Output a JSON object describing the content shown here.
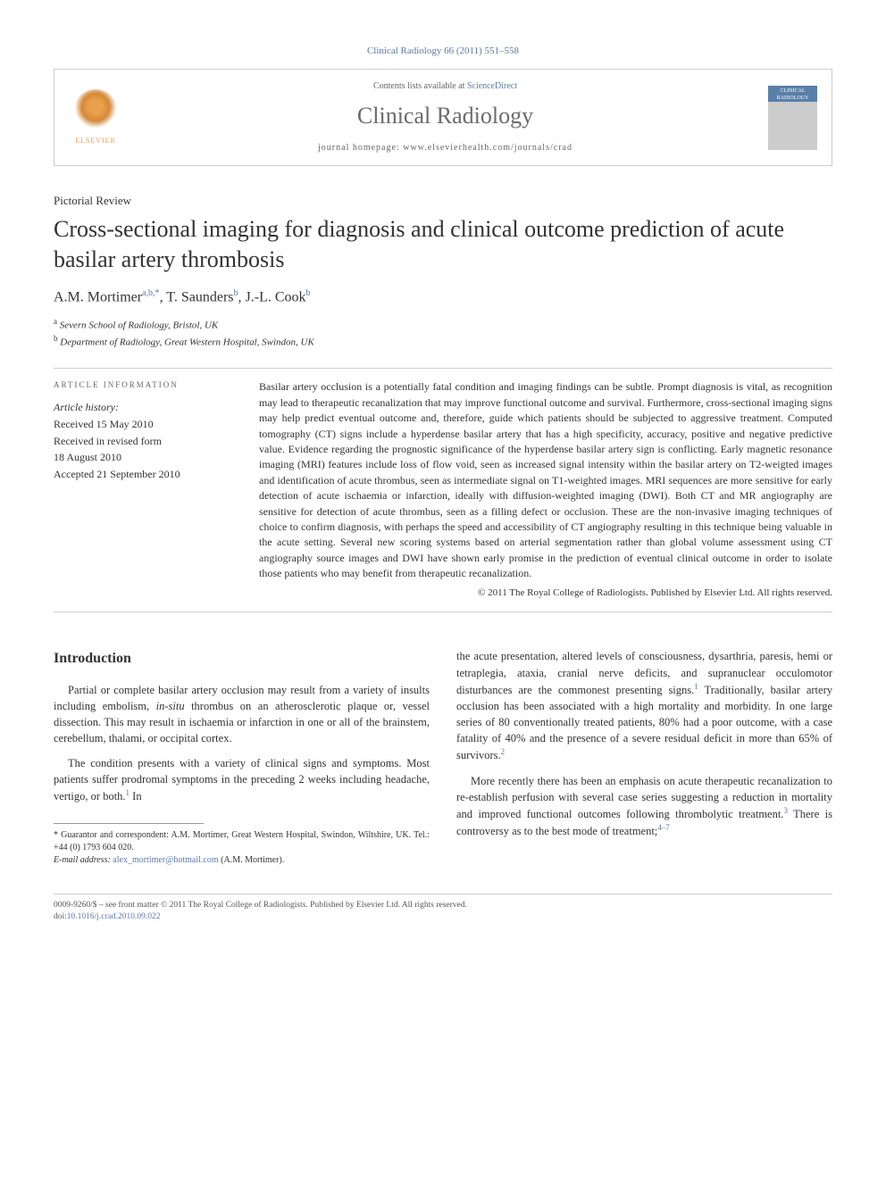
{
  "header": {
    "citation": "Clinical Radiology 66 (2011) 551–558",
    "contents_prefix": "Contents lists available at ",
    "contents_link": "ScienceDirect",
    "journal_name": "Clinical Radiology",
    "homepage_prefix": "journal homepage: ",
    "homepage_url": "www.elsevierhealth.com/journals/crad",
    "elsevier_label": "ELSEVIER",
    "thumb_label": "CLINICAL RADIOLOGY"
  },
  "article": {
    "type": "Pictorial Review",
    "title": "Cross-sectional imaging for diagnosis and clinical outcome prediction of acute basilar artery thrombosis",
    "authors_html": "A.M. Mortimer",
    "author1_sup": "a,b,*",
    "author2": ", T. Saunders",
    "author2_sup": "b",
    "author3": ", J.-L. Cook",
    "author3_sup": "b",
    "affiliations": {
      "a_sup": "a",
      "a": " Severn School of Radiology, Bristol, UK",
      "b_sup": "b",
      "b": " Department of Radiology, Great Western Hospital, Swindon, UK"
    }
  },
  "article_info": {
    "heading": "ARTICLE INFORMATION",
    "history_label": "Article history:",
    "received": "Received 15 May 2010",
    "revised1": "Received in revised form",
    "revised2": "18 August 2010",
    "accepted": "Accepted 21 September 2010"
  },
  "abstract": {
    "text": "Basilar artery occlusion is a potentially fatal condition and imaging findings can be subtle. Prompt diagnosis is vital, as recognition may lead to therapeutic recanalization that may improve functional outcome and survival. Furthermore, cross-sectional imaging signs may help predict eventual outcome and, therefore, guide which patients should be subjected to aggressive treatment. Computed tomography (CT) signs include a hyperdense basilar artery that has a high specificity, accuracy, positive and negative predictive value. Evidence regarding the prognostic significance of the hyperdense basilar artery sign is conflicting. Early magnetic resonance imaging (MRI) features include loss of flow void, seen as increased signal intensity within the basilar artery on T2-weigted images and identification of acute thrombus, seen as intermediate signal on T1-weighted images. MRI sequences are more sensitive for early detection of acute ischaemia or infarction, ideally with diffusion-weighted imaging (DWI). Both CT and MR angiography are sensitive for detection of acute thrombus, seen as a filling defect or occlusion. These are the non-invasive imaging techniques of choice to confirm diagnosis, with perhaps the speed and accessibility of CT angiography resulting in this technique being valuable in the acute setting. Several new scoring systems based on arterial segmentation rather than global volume assessment using CT angiography source images and DWI have shown early promise in the prediction of eventual clinical outcome in order to isolate those patients who may benefit from therapeutic recanalization.",
    "copyright": "© 2011 The Royal College of Radiologists. Published by Elsevier Ltd. All rights reserved."
  },
  "body": {
    "intro_heading": "Introduction",
    "p1_pre": "Partial or complete basilar artery occlusion may result from a variety of insults including embolism, ",
    "p1_em": "in-situ",
    "p1_post": " thrombus on an atherosclerotic plaque or, vessel dissection. This may result in ischaemia or infarction in one or all of the brainstem, cerebellum, thalami, or occipital cortex.",
    "p2_pre": "The condition presents with a variety of clinical signs and symptoms. Most patients suffer prodromal symptoms in the preceding 2 weeks including headache, vertigo, or both.",
    "p2_sup": "1",
    "p2_post": " In",
    "p3_pre": "the acute presentation, altered levels of consciousness, dysarthria, paresis, hemi or tetraplegia, ataxia, cranial nerve deficits, and supranuclear occulomotor disturbances are the commonest presenting signs.",
    "p3_sup": "1",
    "p3_mid": " Traditionally, basilar artery occlusion has been associated with a high mortality and morbidity. In one large series of 80 conventionally treated patients, 80% had a poor outcome, with a case fatality of 40% and the presence of a severe residual deficit in more than 65% of survivors.",
    "p3_sup2": "2",
    "p4_pre": "More recently there has been an emphasis on acute therapeutic recanalization to re-establish perfusion with several case series suggesting a reduction in mortality and improved functional outcomes following thrombolytic treatment.",
    "p4_sup": "3",
    "p4_mid": " There is controversy as to the best mode of treatment;",
    "p4_sup2": "4–7"
  },
  "footnote": {
    "guarantor": "* Guarantor and correspondent: A.M. Mortimer, Great Western Hospital, Swindon, Wiltshire, UK. Tel.: +44 (0) 1793 604 020.",
    "email_label": "E-mail address: ",
    "email": "alex_mortimer@hotmail.com",
    "email_suffix": " (A.M. Mortimer)."
  },
  "footer": {
    "line1": "0009-9260/$ – see front matter © 2011 The Royal College of Radiologists. Published by Elsevier Ltd. All rights reserved.",
    "doi_label": "doi:",
    "doi": "10.1016/j.crad.2010.09.022"
  },
  "colors": {
    "link": "#5b7ba8",
    "text": "#333333",
    "border": "#cccccc",
    "elsevier": "#e8a04a"
  }
}
